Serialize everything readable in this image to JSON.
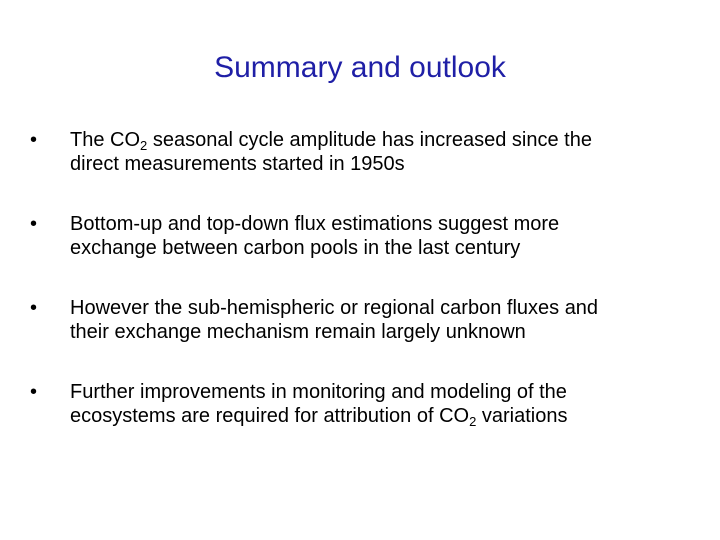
{
  "slide": {
    "title": "Summary and outlook",
    "bullet_char": "•",
    "bullets": [
      {
        "line1_pre": "The CO",
        "line1_sub": "2",
        "line1_post": " seasonal cycle amplitude has increased since the",
        "line2_pre": "direct measurements started in 1950s"
      },
      {
        "line1_pre": "Bottom-up and top-down flux estimations suggest more",
        "line2_pre": "exchange between carbon pools in the last century"
      },
      {
        "line1_pre": "However the sub-hemispheric or regional carbon fluxes and",
        "line2_pre": "their exchange mechanism remain largely unknown"
      },
      {
        "line1_pre": "Further improvements in monitoring and modeling of the",
        "line2_pre": "ecosystems are required for attribution of CO",
        "line2_sub": "2",
        "line2_post": " variations"
      }
    ]
  },
  "colors": {
    "title": "#1f1fa6",
    "text": "#000000",
    "background": "#ffffff"
  }
}
